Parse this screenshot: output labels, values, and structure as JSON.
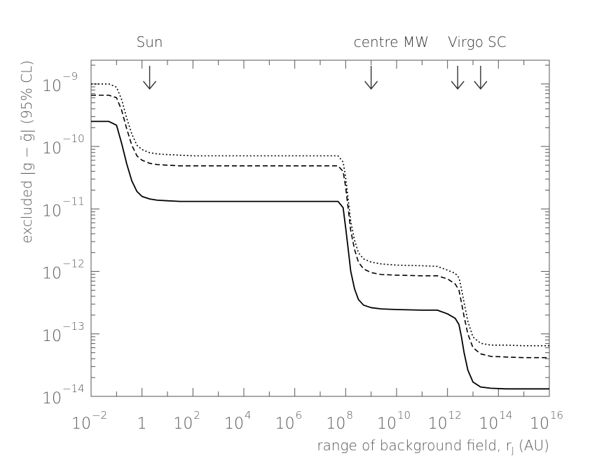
{
  "chart_data": {
    "type": "line",
    "title": "",
    "xlabel": "range of background field, r",
    "xlabel_sub": "J",
    "xlabel_unit": " (AU)",
    "ylabel": "excluded |g − ḡ| (95% CL)",
    "x_scale": "log10",
    "y_scale": "log10",
    "xlim_log10": [
      -2,
      16
    ],
    "ylim_log10": [
      -14,
      -8.62
    ],
    "x_ticks": [
      {
        "base": "10",
        "exp": "−2",
        "log": -2
      },
      {
        "base": "1",
        "exp": "",
        "log": 0
      },
      {
        "base": "10",
        "exp": "2",
        "log": 2
      },
      {
        "base": "10",
        "exp": "4",
        "log": 4
      },
      {
        "base": "10",
        "exp": "6",
        "log": 6
      },
      {
        "base": "10",
        "exp": "8",
        "log": 8
      },
      {
        "base": "10",
        "exp": "10",
        "log": 10
      },
      {
        "base": "10",
        "exp": "12",
        "log": 12
      },
      {
        "base": "10",
        "exp": "14",
        "log": 14
      },
      {
        "base": "10",
        "exp": "16",
        "log": 16
      }
    ],
    "y_ticks": [
      {
        "base": "10",
        "exp": "−9",
        "log": -9
      },
      {
        "base": "10",
        "exp": "−10",
        "log": -10
      },
      {
        "base": "10",
        "exp": "−11",
        "log": -11
      },
      {
        "base": "10",
        "exp": "−12",
        "log": -12
      },
      {
        "base": "10",
        "exp": "−13",
        "log": -13
      },
      {
        "base": "10",
        "exp": "−14",
        "log": -14
      }
    ],
    "annotations": [
      {
        "label": "Sun",
        "x_log10": 0.3
      },
      {
        "label": "centre MW",
        "x_log10": 9.0
      },
      {
        "label": "Virgo",
        "x_log10": 12.4
      },
      {
        "label": "SC",
        "x_log10": 13.3
      }
    ],
    "series": [
      {
        "style": "dotted",
        "x_log10": [
          -2,
          -1.3,
          -1.0,
          -0.8,
          -0.6,
          -0.4,
          -0.2,
          0,
          0.3,
          0.6,
          1.0,
          1.5,
          2.0,
          4.0,
          6.0,
          7.7,
          7.9,
          8.0,
          8.1,
          8.2,
          8.35,
          8.5,
          8.7,
          9.0,
          9.4,
          10.0,
          11.0,
          11.6,
          12.0,
          12.3,
          12.45,
          12.55,
          12.65,
          12.8,
          13.0,
          13.3,
          13.7,
          14.3,
          15.0,
          16.0
        ],
        "y_log10": [
          -9.0,
          -9.0,
          -9.05,
          -9.25,
          -9.55,
          -9.8,
          -9.98,
          -10.05,
          -10.1,
          -10.12,
          -10.13,
          -10.14,
          -10.15,
          -10.15,
          -10.15,
          -10.15,
          -10.25,
          -10.5,
          -10.85,
          -11.2,
          -11.5,
          -11.7,
          -11.8,
          -11.85,
          -11.88,
          -11.9,
          -11.91,
          -11.92,
          -11.98,
          -12.03,
          -12.1,
          -12.28,
          -12.5,
          -12.8,
          -13.05,
          -13.15,
          -13.18,
          -13.18,
          -13.19,
          -13.19
        ]
      },
      {
        "style": "dashed",
        "x_log10": [
          -2,
          -1.3,
          -1.0,
          -0.8,
          -0.6,
          -0.4,
          -0.2,
          0,
          0.3,
          0.6,
          1.0,
          1.5,
          2.0,
          4.0,
          6.0,
          7.7,
          7.9,
          8.0,
          8.1,
          8.2,
          8.35,
          8.5,
          8.7,
          9.0,
          9.4,
          10.0,
          11.0,
          11.6,
          12.0,
          12.3,
          12.45,
          12.55,
          12.65,
          12.8,
          13.0,
          13.3,
          13.7,
          14.3,
          15.0,
          16.0
        ],
        "y_log10": [
          -9.18,
          -9.18,
          -9.22,
          -9.42,
          -9.72,
          -9.98,
          -10.15,
          -10.22,
          -10.27,
          -10.29,
          -10.3,
          -10.31,
          -10.31,
          -10.31,
          -10.31,
          -10.31,
          -10.4,
          -10.65,
          -11.0,
          -11.35,
          -11.65,
          -11.85,
          -11.96,
          -12.02,
          -12.05,
          -12.06,
          -12.07,
          -12.07,
          -12.12,
          -12.2,
          -12.3,
          -12.5,
          -12.72,
          -13.0,
          -13.22,
          -13.32,
          -13.36,
          -13.37,
          -13.38,
          -13.38
        ]
      },
      {
        "style": "solid",
        "x_log10": [
          -2,
          -1.3,
          -1.0,
          -0.8,
          -0.6,
          -0.4,
          -0.2,
          0,
          0.3,
          0.6,
          1.0,
          1.5,
          2.0,
          4.0,
          6.0,
          7.7,
          7.9,
          8.0,
          8.1,
          8.2,
          8.35,
          8.5,
          8.7,
          9.0,
          9.4,
          10.0,
          11.0,
          11.6,
          12.0,
          12.3,
          12.45,
          12.55,
          12.65,
          12.8,
          13.0,
          13.3,
          13.7,
          14.3,
          15.0,
          16.0
        ],
        "y_log10": [
          -9.6,
          -9.6,
          -9.66,
          -9.95,
          -10.28,
          -10.55,
          -10.72,
          -10.8,
          -10.84,
          -10.86,
          -10.87,
          -10.88,
          -10.88,
          -10.88,
          -10.88,
          -10.88,
          -10.98,
          -11.3,
          -11.65,
          -12.0,
          -12.28,
          -12.45,
          -12.54,
          -12.58,
          -12.6,
          -12.61,
          -12.62,
          -12.62,
          -12.68,
          -12.75,
          -12.85,
          -13.05,
          -13.3,
          -13.58,
          -13.77,
          -13.85,
          -13.87,
          -13.88,
          -13.88,
          -13.88
        ]
      }
    ]
  }
}
